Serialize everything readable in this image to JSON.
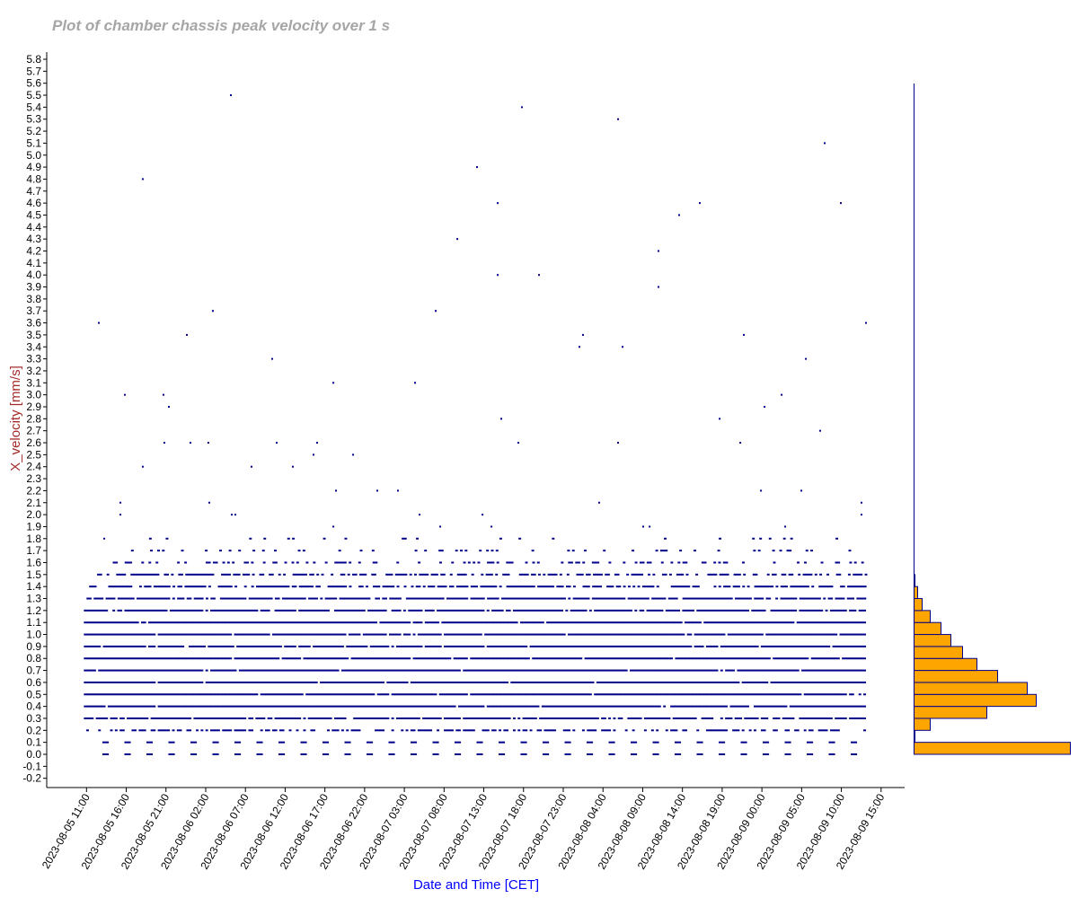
{
  "chart_data": {
    "type": "scatter",
    "title": "Plot of chamber chassis peak velocity over 1 s",
    "xlabel": "Date and Time [CET]",
    "ylabel": "X_velocity [mm/s]",
    "ylim": [
      -0.2,
      5.8
    ],
    "ytick_step": 0.1,
    "xlim": [
      "2023-08-05 05:00",
      "2023-08-09 18:00"
    ],
    "xticks": [
      "2023-08-05 11:00",
      "2023-08-05 16:00",
      "2023-08-05 21:00",
      "2023-08-06 02:00",
      "2023-08-06 07:00",
      "2023-08-06 12:00",
      "2023-08-06 17:00",
      "2023-08-06 22:00",
      "2023-08-07 03:00",
      "2023-08-07 08:00",
      "2023-08-07 13:00",
      "2023-08-07 18:00",
      "2023-08-07 23:00",
      "2023-08-08 04:00",
      "2023-08-08 09:00",
      "2023-08-08 14:00",
      "2023-08-08 19:00",
      "2023-08-09 00:00",
      "2023-08-09 05:00",
      "2023-08-09 10:00",
      "2023-08-09 15:00"
    ],
    "grid": false,
    "point_color": "#00008b",
    "dense_levels": [
      {
        "y": 0.0,
        "start": "2023-08-05 13:00",
        "end": "2023-08-09 12:40",
        "pattern": "periodic",
        "period_hours": 2.77,
        "dash_hours": 0.8
      },
      {
        "y": 0.1,
        "start": "2023-08-05 13:00",
        "end": "2023-08-09 12:40",
        "pattern": "periodic",
        "period_hours": 2.77,
        "dash_hours": 0.8
      },
      {
        "y": 0.2,
        "start": "2023-08-05 10:40",
        "end": "2023-08-09 13:00",
        "density": 0.55
      },
      {
        "y": 0.3,
        "start": "2023-08-05 10:40",
        "end": "2023-08-09 13:00",
        "density": 0.85
      },
      {
        "y": 0.4,
        "start": "2023-08-05 10:40",
        "end": "2023-08-09 13:00",
        "density": 0.95
      },
      {
        "y": 0.5,
        "start": "2023-08-05 10:40",
        "end": "2023-08-09 13:00",
        "density": 0.95
      },
      {
        "y": 0.6,
        "start": "2023-08-05 10:40",
        "end": "2023-08-09 13:00",
        "density": 0.97
      },
      {
        "y": 0.7,
        "start": "2023-08-05 10:40",
        "end": "2023-08-09 13:00",
        "density": 0.96
      },
      {
        "y": 0.8,
        "start": "2023-08-05 10:40",
        "end": "2023-08-09 13:00",
        "density": 0.96
      },
      {
        "y": 0.9,
        "start": "2023-08-05 10:40",
        "end": "2023-08-09 13:00",
        "density": 0.96
      },
      {
        "y": 1.0,
        "start": "2023-08-05 10:40",
        "end": "2023-08-09 13:00",
        "density": 0.96
      },
      {
        "y": 1.1,
        "start": "2023-08-05 10:40",
        "end": "2023-08-09 13:00",
        "density": 0.95
      },
      {
        "y": 1.2,
        "start": "2023-08-05 10:40",
        "end": "2023-08-09 13:00",
        "density": 0.9
      },
      {
        "y": 1.3,
        "start": "2023-08-05 11:00",
        "end": "2023-08-09 13:00",
        "density": 0.85
      },
      {
        "y": 1.4,
        "start": "2023-08-05 11:20",
        "end": "2023-08-09 13:00",
        "density": 0.7
      },
      {
        "y": 1.5,
        "start": "2023-08-05 12:20",
        "end": "2023-08-09 13:00",
        "density": 0.55
      },
      {
        "y": 1.6,
        "start": "2023-08-05 14:00",
        "end": "2023-08-09 12:40",
        "density": 0.3
      },
      {
        "y": 1.7,
        "start": "2023-08-05 16:00",
        "end": "2023-08-09 12:40",
        "density": 0.15
      },
      {
        "y": 1.8,
        "start": "2023-08-05 13:10",
        "end": "2023-08-09 12:40",
        "density": 0.06
      }
    ],
    "points": [
      [
        "2023-08-05 12:33",
        3.6
      ],
      [
        "2023-08-05 13:14",
        1.8
      ],
      [
        "2023-08-05 15:16",
        2.1
      ],
      [
        "2023-08-05 15:16",
        2.0
      ],
      [
        "2023-08-05 15:50",
        3.0
      ],
      [
        "2023-08-05 18:05",
        4.8
      ],
      [
        "2023-08-05 18:05",
        2.4
      ],
      [
        "2023-08-05 20:41",
        3.0
      ],
      [
        "2023-08-05 20:48",
        2.6
      ],
      [
        "2023-08-05 21:22",
        2.9
      ],
      [
        "2023-08-05 23:38",
        3.5
      ],
      [
        "2023-08-06 00:05",
        2.6
      ],
      [
        "2023-08-06 02:20",
        2.6
      ],
      [
        "2023-08-06 02:27",
        2.1
      ],
      [
        "2023-08-06 02:54",
        3.7
      ],
      [
        "2023-08-06 05:10",
        5.5
      ],
      [
        "2023-08-06 05:17",
        2.0
      ],
      [
        "2023-08-06 05:44",
        2.0
      ],
      [
        "2023-08-06 07:46",
        2.4
      ],
      [
        "2023-08-06 10:22",
        3.3
      ],
      [
        "2023-08-06 10:56",
        2.6
      ],
      [
        "2023-08-06 12:58",
        2.4
      ],
      [
        "2023-08-06 15:34",
        2.5
      ],
      [
        "2023-08-06 16:01",
        2.6
      ],
      [
        "2023-08-06 18:04",
        3.1
      ],
      [
        "2023-08-06 18:04",
        1.9
      ],
      [
        "2023-08-06 18:24",
        2.2
      ],
      [
        "2023-08-06 20:33",
        2.5
      ],
      [
        "2023-08-06 23:36",
        2.2
      ],
      [
        "2023-08-07 02:12",
        2.2
      ],
      [
        "2023-08-07 04:21",
        3.1
      ],
      [
        "2023-08-07 04:55",
        2.0
      ],
      [
        "2023-08-07 06:57",
        3.7
      ],
      [
        "2023-08-07 07:31",
        1.9
      ],
      [
        "2023-08-07 09:40",
        4.3
      ],
      [
        "2023-08-07 12:09",
        4.9
      ],
      [
        "2023-08-07 12:50",
        2.0
      ],
      [
        "2023-08-07 13:58",
        1.9
      ],
      [
        "2023-08-07 14:45",
        4.6
      ],
      [
        "2023-08-07 14:45",
        4.0
      ],
      [
        "2023-08-07 15:12",
        2.8
      ],
      [
        "2023-08-07 17:21",
        2.6
      ],
      [
        "2023-08-07 17:48",
        5.4
      ],
      [
        "2023-08-07 19:57",
        4.0
      ],
      [
        "2023-08-08 01:02",
        3.4
      ],
      [
        "2023-08-08 01:29",
        3.5
      ],
      [
        "2023-08-08 03:31",
        2.1
      ],
      [
        "2023-08-08 05:54",
        5.3
      ],
      [
        "2023-08-08 05:54",
        2.6
      ],
      [
        "2023-08-08 06:28",
        3.4
      ],
      [
        "2023-08-08 09:04",
        1.9
      ],
      [
        "2023-08-08 09:52",
        1.9
      ],
      [
        "2023-08-08 10:59",
        4.2
      ],
      [
        "2023-08-08 10:59",
        3.9
      ],
      [
        "2023-08-08 13:35",
        4.5
      ],
      [
        "2023-08-08 16:11",
        4.6
      ],
      [
        "2023-08-08 18:41",
        2.8
      ],
      [
        "2023-08-08 21:17",
        2.6
      ],
      [
        "2023-08-08 21:44",
        3.5
      ],
      [
        "2023-08-08 23:53",
        2.2
      ],
      [
        "2023-08-09 00:20",
        2.9
      ],
      [
        "2023-08-09 02:29",
        3.0
      ],
      [
        "2023-08-09 02:56",
        1.9
      ],
      [
        "2023-08-09 04:58",
        2.2
      ],
      [
        "2023-08-09 05:32",
        3.3
      ],
      [
        "2023-08-09 07:20",
        2.7
      ],
      [
        "2023-08-09 07:54",
        5.1
      ],
      [
        "2023-08-09 09:56",
        4.6
      ],
      [
        "2023-08-09 12:32",
        2.1
      ],
      [
        "2023-08-09 12:32",
        2.0
      ],
      [
        "2023-08-09 13:06",
        3.6
      ]
    ],
    "histogram": {
      "orientation": "horizontal",
      "bar_color": "#ffa500",
      "edge_color": "#00008b",
      "bin_width": 0.1,
      "bins": [
        0.0,
        0.1,
        0.2,
        0.3,
        0.4,
        0.5,
        0.6,
        0.7,
        0.8,
        0.9,
        1.0,
        1.1,
        1.2,
        1.3,
        1.4
      ],
      "relative_counts": [
        174,
        1,
        18,
        81,
        136,
        126,
        93,
        70,
        54,
        41,
        30,
        18,
        9,
        4,
        1
      ]
    }
  }
}
